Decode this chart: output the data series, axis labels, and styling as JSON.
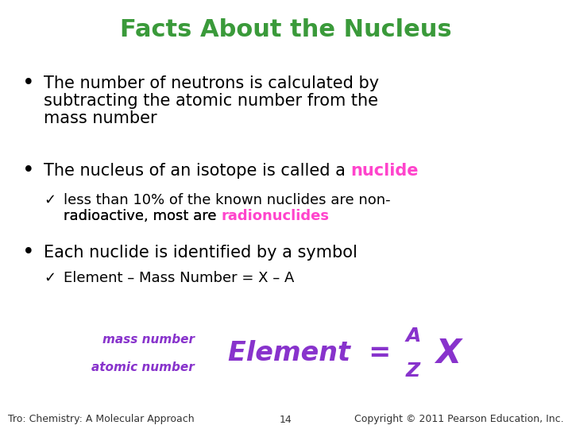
{
  "title": "Facts About the Nucleus",
  "title_color": "#3a9a3a",
  "title_fontsize": 22,
  "background_color": "#ffffff",
  "bullet1_line1": "The number of neutrons is calculated by",
  "bullet1_line2": "subtracting the atomic number from the",
  "bullet1_line3": "mass number",
  "bullet2_pre": "The nucleus of an isotope is called a ",
  "bullet2_highlight": "nuclide",
  "bullet2_highlight_color": "#ff44cc",
  "check1_pre": "less than 10% of the known nuclides are non-",
  "check1_line2_pre": "radioactive, most are ",
  "check1_highlight": "radionuclides",
  "check1_highlight_color": "#ff44cc",
  "bullet3": "Each nuclide is identified by a symbol",
  "check2": "Element – Mass Number = X – A",
  "formula_color": "#8833cc",
  "formula_fontsize": 24,
  "formula_label_top": "mass number",
  "formula_label_bottom": "atomic number",
  "formula_label_color": "#8833cc",
  "formula_label_fontsize": 11,
  "footer_left": "Tro: Chemistry: A Molecular Approach",
  "footer_center": "14",
  "footer_right": "Copyright © 2011 Pearson Education, Inc.",
  "footer_fontsize": 9,
  "footer_color": "#333333",
  "body_fontsize": 15,
  "body_color": "#000000",
  "sub_fontsize": 13
}
